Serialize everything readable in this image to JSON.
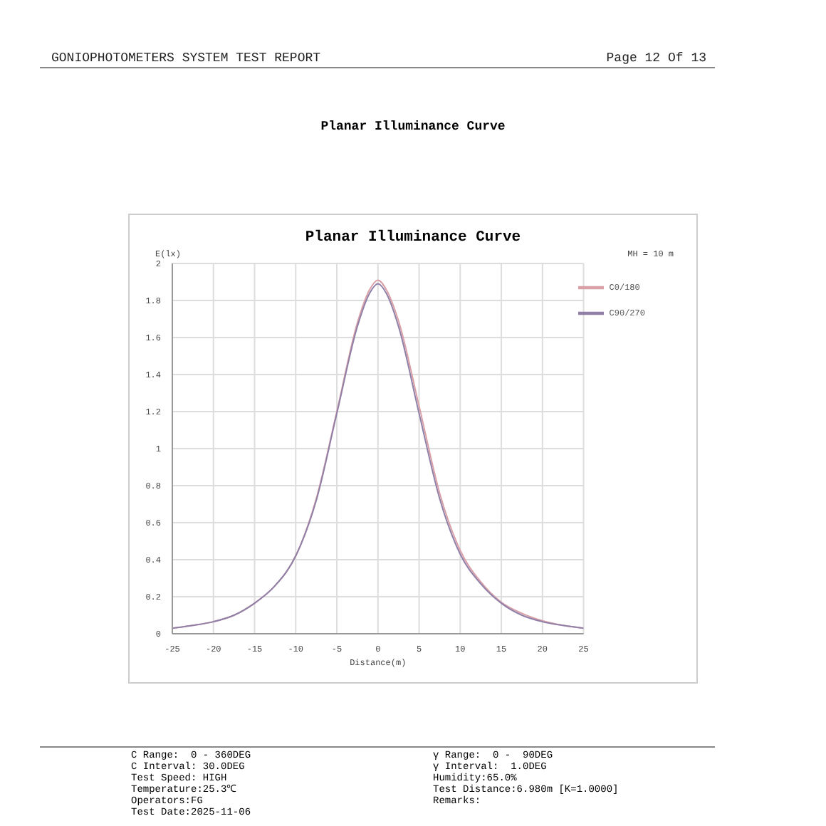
{
  "chart_data": {
    "type": "line",
    "title": "Planar Illuminance Curve",
    "xlabel": "Distance(m)",
    "ylabel": "E(lx)",
    "annotations": [
      "GONIOPHOTOMETERS SYSTEM TEST REPORT",
      "Page 12 Of 13",
      "Planar Illuminance Curve",
      "MH = 10 m",
      "C Range:  0 - 360DEG",
      "C Interval: 30.0DEG",
      "Test Speed: HIGH",
      "Temperature:25.3℃",
      "Operators:FG",
      "Test Date:2025-11-06",
      "γ Range:  0 -  90DEG",
      "γ Interval:  1.0DEG",
      "Humidity:65.0%",
      "Test Distance:6.980m [K=1.0000]",
      "Remarks:"
    ],
    "x": [
      -25,
      -22.5,
      -20,
      -17.5,
      -15,
      -12.5,
      -10,
      -7.5,
      -5,
      -2.5,
      -1,
      0,
      1,
      2.5,
      5,
      7.5,
      10,
      12.5,
      15,
      17.5,
      20,
      22.5,
      25
    ],
    "series": [
      {
        "name": "C0/180",
        "color": "#d9a0a8",
        "values": [
          0.03,
          0.045,
          0.065,
          0.1,
          0.165,
          0.26,
          0.42,
          0.73,
          1.2,
          1.68,
          1.86,
          1.91,
          1.86,
          1.69,
          1.23,
          0.76,
          0.45,
          0.28,
          0.17,
          0.11,
          0.07,
          0.045,
          0.03
        ]
      },
      {
        "name": "C90/270",
        "color": "#9080a8",
        "values": [
          0.03,
          0.045,
          0.065,
          0.1,
          0.165,
          0.26,
          0.42,
          0.72,
          1.19,
          1.66,
          1.84,
          1.89,
          1.84,
          1.66,
          1.19,
          0.73,
          0.43,
          0.27,
          0.165,
          0.1,
          0.065,
          0.045,
          0.03
        ]
      }
    ],
    "xlim": [
      -25,
      25
    ],
    "xticks": [
      -25,
      -20,
      -15,
      -10,
      -5,
      0,
      5,
      10,
      15,
      20,
      25
    ],
    "ylim": [
      0,
      2
    ],
    "yticks": [
      0,
      0.2,
      0.4,
      0.6,
      0.8,
      1,
      1.2,
      1.4,
      1.6,
      1.8,
      2
    ],
    "grid": true,
    "legend": "top right",
    "marker": "none",
    "line_style": "solid"
  }
}
